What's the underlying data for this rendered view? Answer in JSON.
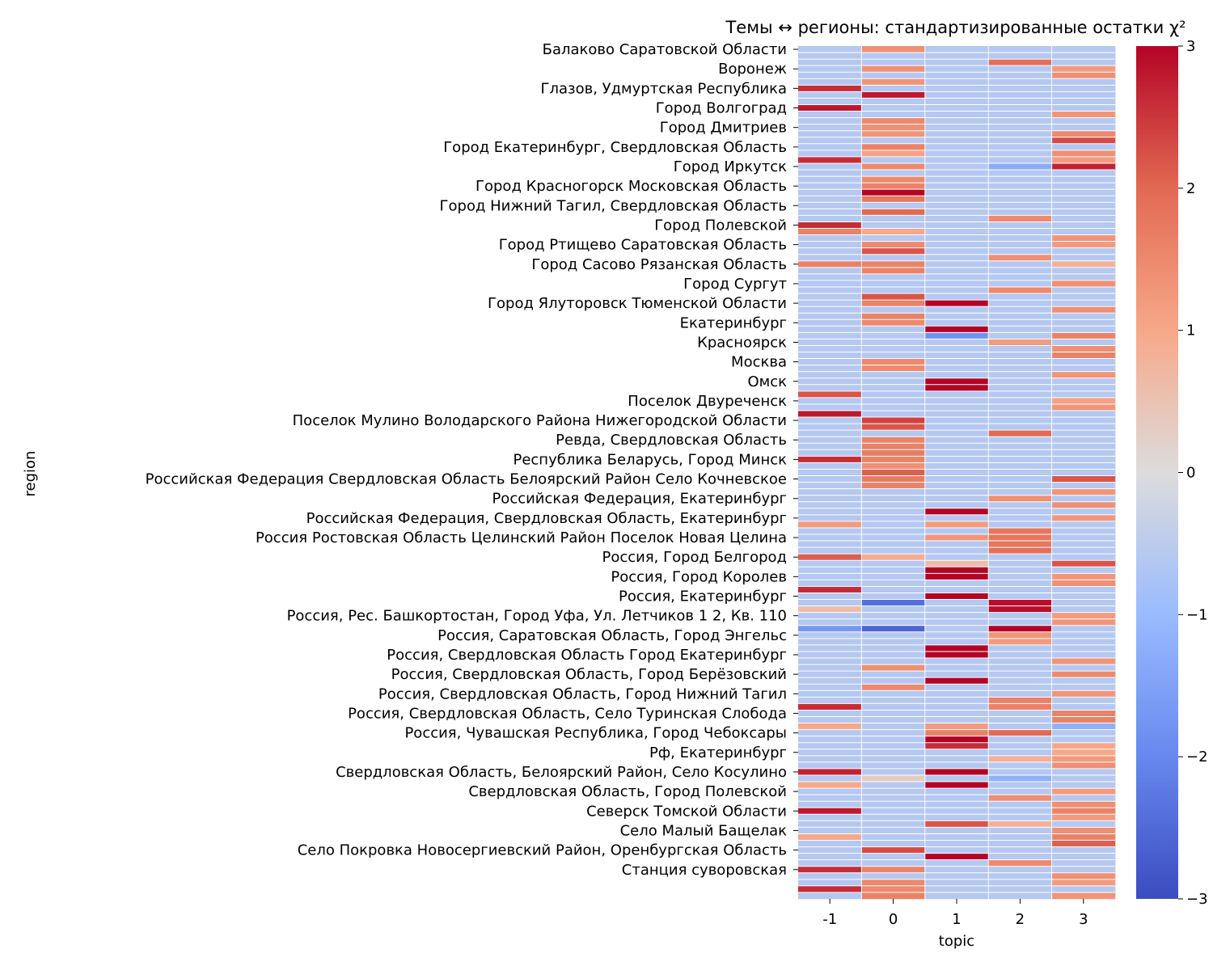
{
  "chart_data": {
    "type": "heatmap",
    "title": "Темы ↔ регионы: стандартизированные остатки χ²",
    "xlabel": "topic",
    "ylabel": "region",
    "x_categories": [
      "-1",
      "0",
      "1",
      "2",
      "3"
    ],
    "row_count": 131,
    "y_tick_labels": [
      {
        "row": 0,
        "label": "Балаково Саратовской Области"
      },
      {
        "row": 3,
        "label": "Воронеж"
      },
      {
        "row": 6,
        "label": "Глазов, Удмуртская Республика"
      },
      {
        "row": 9,
        "label": "Город Волгоград"
      },
      {
        "row": 12,
        "label": "Город Дмитриев"
      },
      {
        "row": 15,
        "label": "Город Екатеринбург, Свердловская Область"
      },
      {
        "row": 18,
        "label": "Город Иркутск"
      },
      {
        "row": 21,
        "label": "Город Красногорск Московская Область"
      },
      {
        "row": 24,
        "label": "Город Нижний Тагил, Свердловская Область"
      },
      {
        "row": 27,
        "label": "Город Полевской"
      },
      {
        "row": 30,
        "label": "Город Ртищево Саратовская Область"
      },
      {
        "row": 33,
        "label": "Город Сасово Рязанская Область"
      },
      {
        "row": 36,
        "label": "Город Сургут"
      },
      {
        "row": 39,
        "label": "Город Ялуторовск Тюменской Области"
      },
      {
        "row": 42,
        "label": "Екатеринбург"
      },
      {
        "row": 45,
        "label": "Красноярск"
      },
      {
        "row": 48,
        "label": "Москва"
      },
      {
        "row": 51,
        "label": "Омск"
      },
      {
        "row": 54,
        "label": "Поселок Двуреченск"
      },
      {
        "row": 57,
        "label": "Поселок Мулино Володарского Района Нижегородской Области"
      },
      {
        "row": 60,
        "label": "Ревда, Свердловская Область"
      },
      {
        "row": 63,
        "label": "Республика Беларусь, Город Минск"
      },
      {
        "row": 66,
        "label": "Российская Федерация Свердловская Область Белоярский Район Село Кочневское"
      },
      {
        "row": 69,
        "label": "Российская Федерация, Екатеринбург"
      },
      {
        "row": 72,
        "label": "Российская Федерация, Свердловская Область, Екатеринбург"
      },
      {
        "row": 75,
        "label": "Россия Ростовская Область Целинский Район Поселок Новая Целина"
      },
      {
        "row": 78,
        "label": "Россия, Город Белгород"
      },
      {
        "row": 81,
        "label": "Россия, Город Королев"
      },
      {
        "row": 84,
        "label": "Россия, Екатеринбург"
      },
      {
        "row": 87,
        "label": "Россия, Рес. Башкортостан, Город Уфа, Ул. Летчиков 1 2, Кв. 110"
      },
      {
        "row": 90,
        "label": "Россия, Саратовская Область, Город Энгельс"
      },
      {
        "row": 93,
        "label": "Россия, Свердловская Область Город Екатеринбург"
      },
      {
        "row": 96,
        "label": "Россия, Свердловская Область, Город Берёзовский"
      },
      {
        "row": 99,
        "label": "Россия, Свердловская Область, Город Нижний Тагил"
      },
      {
        "row": 102,
        "label": "Россия, Свердловская Область, Село Туринская Слобода"
      },
      {
        "row": 105,
        "label": "Россия, Чувашская Республика, Город Чебоксары"
      },
      {
        "row": 108,
        "label": "Рф, Екатеринбург"
      },
      {
        "row": 111,
        "label": "Свердловская Область, Белоярский Район, Село Косулино"
      },
      {
        "row": 114,
        "label": "Свердловская Область, Город Полевской"
      },
      {
        "row": 117,
        "label": "Северск Томской Области"
      },
      {
        "row": 120,
        "label": "Село Малый Бащелак"
      },
      {
        "row": 123,
        "label": "Село Покровка Новосергиевский Район, Оренбургская Область"
      },
      {
        "row": 126,
        "label": "Станция суворовская"
      }
    ],
    "default_value": -0.6,
    "cells": [
      [
        0,
        1,
        1.4
      ],
      [
        3,
        1,
        1.4
      ],
      [
        2,
        3,
        1.9
      ],
      [
        3,
        4,
        1.2
      ],
      [
        4,
        4,
        1.4
      ],
      [
        5,
        1,
        1.3
      ],
      [
        6,
        0,
        2.6
      ],
      [
        7,
        1,
        2.8
      ],
      [
        9,
        0,
        2.8
      ],
      [
        10,
        4,
        1.3
      ],
      [
        11,
        1,
        1.5
      ],
      [
        12,
        1,
        1.4
      ],
      [
        13,
        1,
        1.3
      ],
      [
        13,
        4,
        1.5
      ],
      [
        14,
        4,
        2.3
      ],
      [
        15,
        1,
        1.6
      ],
      [
        16,
        1,
        1.1
      ],
      [
        16,
        4,
        1.4
      ],
      [
        17,
        4,
        1.2
      ],
      [
        17,
        0,
        2.6
      ],
      [
        18,
        1,
        1.5
      ],
      [
        18,
        4,
        2.7
      ],
      [
        18,
        3,
        -1.3
      ],
      [
        20,
        1,
        1.5
      ],
      [
        21,
        1,
        1.6
      ],
      [
        22,
        1,
        3.0
      ],
      [
        23,
        1,
        1.8
      ],
      [
        25,
        1,
        2.0
      ],
      [
        26,
        3,
        1.5
      ],
      [
        27,
        0,
        2.6
      ],
      [
        28,
        0,
        1.6
      ],
      [
        28,
        1,
        1.0
      ],
      [
        29,
        4,
        1.3
      ],
      [
        30,
        4,
        1.2
      ],
      [
        30,
        1,
        1.5
      ],
      [
        31,
        1,
        2.2
      ],
      [
        32,
        3,
        1.4
      ],
      [
        33,
        0,
        1.6
      ],
      [
        33,
        1,
        1.6
      ],
      [
        33,
        4,
        0.8
      ],
      [
        34,
        1,
        1.6
      ],
      [
        36,
        4,
        1.4
      ],
      [
        37,
        3,
        1.5
      ],
      [
        38,
        1,
        2.2
      ],
      [
        39,
        1,
        1.6
      ],
      [
        39,
        2,
        3.0
      ],
      [
        40,
        4,
        1.4
      ],
      [
        41,
        1,
        1.6
      ],
      [
        42,
        1,
        1.5
      ],
      [
        43,
        2,
        3.0
      ],
      [
        44,
        2,
        -1.8
      ],
      [
        44,
        4,
        1.6
      ],
      [
        45,
        3,
        1.2
      ],
      [
        46,
        4,
        1.4
      ],
      [
        47,
        4,
        1.6
      ],
      [
        48,
        1,
        1.5
      ],
      [
        48,
        1,
        1.5
      ],
      [
        49,
        1,
        1.5
      ],
      [
        50,
        4,
        1.3
      ],
      [
        51,
        2,
        3.0
      ],
      [
        52,
        2,
        3.0
      ],
      [
        53,
        0,
        2.2
      ],
      [
        54,
        4,
        1.1
      ],
      [
        55,
        4,
        1.3
      ],
      [
        56,
        0,
        2.8
      ],
      [
        57,
        1,
        2.4
      ],
      [
        58,
        1,
        2.2
      ],
      [
        59,
        3,
        2.0
      ],
      [
        60,
        1,
        1.6
      ],
      [
        61,
        1,
        1.6
      ],
      [
        62,
        1,
        1.7
      ],
      [
        63,
        0,
        2.6
      ],
      [
        63,
        1,
        1.6
      ],
      [
        64,
        1,
        1.4
      ],
      [
        65,
        1,
        2.1
      ],
      [
        66,
        1,
        1.7
      ],
      [
        66,
        4,
        2.2
      ],
      [
        67,
        1,
        1.6
      ],
      [
        68,
        4,
        1.3
      ],
      [
        69,
        3,
        1.4
      ],
      [
        70,
        4,
        1.4
      ],
      [
        71,
        2,
        3.0
      ],
      [
        72,
        4,
        1.3
      ],
      [
        73,
        0,
        1.2
      ],
      [
        73,
        2,
        1.2
      ],
      [
        74,
        3,
        1.8
      ],
      [
        75,
        2,
        1.3
      ],
      [
        75,
        3,
        1.8
      ],
      [
        76,
        3,
        1.8
      ],
      [
        77,
        3,
        1.9
      ],
      [
        78,
        0,
        2.1
      ],
      [
        78,
        1,
        0.9
      ],
      [
        79,
        2,
        0.6
      ],
      [
        79,
        4,
        2.2
      ],
      [
        80,
        2,
        3.0
      ],
      [
        81,
        2,
        3.0
      ],
      [
        81,
        4,
        1.3
      ],
      [
        82,
        4,
        1.4
      ],
      [
        83,
        0,
        2.6
      ],
      [
        84,
        2,
        3.0
      ],
      [
        85,
        1,
        -2.4
      ],
      [
        85,
        3,
        2.9
      ],
      [
        86,
        0,
        0.6
      ],
      [
        86,
        3,
        2.9
      ],
      [
        87,
        4,
        1.2
      ],
      [
        88,
        4,
        1.3
      ],
      [
        89,
        0,
        -1.7
      ],
      [
        89,
        1,
        -2.6
      ],
      [
        89,
        3,
        3.0
      ],
      [
        90,
        3,
        1.3
      ],
      [
        91,
        3,
        1.2
      ],
      [
        92,
        2,
        3.0
      ],
      [
        93,
        2,
        3.0
      ],
      [
        94,
        4,
        1.3
      ],
      [
        95,
        1,
        1.4
      ],
      [
        96,
        4,
        1.5
      ],
      [
        97,
        2,
        3.0
      ],
      [
        98,
        1,
        1.5
      ],
      [
        99,
        4,
        1.3
      ],
      [
        100,
        3,
        1.6
      ],
      [
        101,
        3,
        1.6
      ],
      [
        101,
        0,
        2.6
      ],
      [
        102,
        4,
        1.6
      ],
      [
        103,
        4,
        1.6
      ],
      [
        104,
        0,
        1.0
      ],
      [
        104,
        2,
        1.2
      ],
      [
        104,
        4,
        -1.2
      ],
      [
        105,
        2,
        1.6
      ],
      [
        105,
        3,
        2.0
      ],
      [
        106,
        2,
        3.0
      ],
      [
        107,
        2,
        2.6
      ],
      [
        107,
        4,
        1.0
      ],
      [
        108,
        4,
        1.0
      ],
      [
        109,
        3,
        0.8
      ],
      [
        109,
        4,
        1.2
      ],
      [
        110,
        4,
        1.4
      ],
      [
        111,
        0,
        2.7
      ],
      [
        111,
        2,
        3.0
      ],
      [
        112,
        1,
        0.3
      ],
      [
        112,
        3,
        -1.2
      ],
      [
        113,
        0,
        1.0
      ],
      [
        113,
        2,
        3.0
      ],
      [
        114,
        4,
        1.2
      ],
      [
        115,
        3,
        1.4
      ],
      [
        116,
        4,
        1.4
      ],
      [
        117,
        0,
        2.8
      ],
      [
        117,
        4,
        1.6
      ],
      [
        118,
        4,
        1.2
      ],
      [
        119,
        2,
        2.2
      ],
      [
        119,
        3,
        0.8
      ],
      [
        120,
        4,
        1.4
      ],
      [
        121,
        0,
        1.0
      ],
      [
        121,
        4,
        1.6
      ],
      [
        122,
        4,
        2.1
      ],
      [
        123,
        1,
        2.3
      ],
      [
        124,
        2,
        3.0
      ],
      [
        125,
        3,
        1.5
      ],
      [
        126,
        0,
        2.6
      ],
      [
        126,
        1,
        1.6
      ],
      [
        127,
        4,
        1.4
      ],
      [
        128,
        1,
        1.5
      ],
      [
        128,
        4,
        1.2
      ],
      [
        129,
        0,
        2.6
      ],
      [
        129,
        1,
        1.5
      ],
      [
        130,
        1,
        1.6
      ],
      [
        130,
        4,
        1.3
      ]
    ],
    "colorbar": {
      "colormap": "coolwarm",
      "vmin": -3,
      "vmax": 3,
      "ticks": [
        "−3",
        "−2",
        "−1",
        "0",
        "1",
        "2",
        "3"
      ]
    },
    "grid": true
  }
}
